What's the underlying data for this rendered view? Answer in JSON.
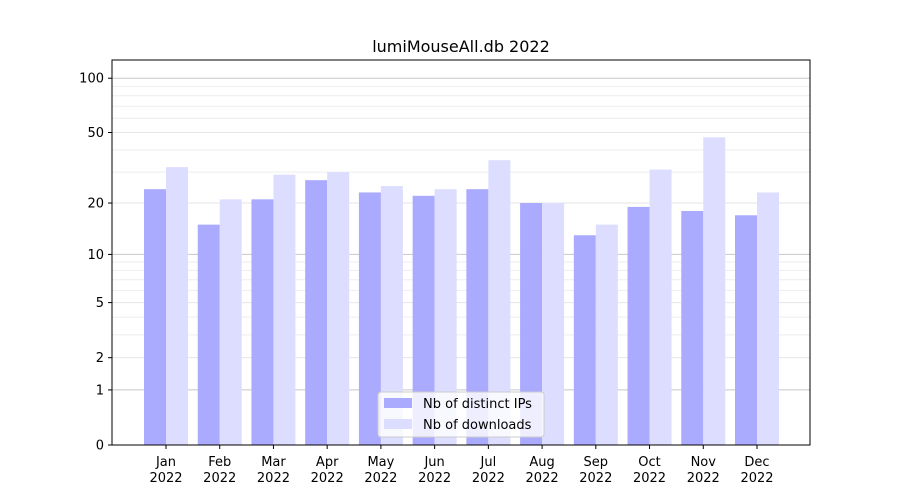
{
  "chart_data": {
    "type": "bar",
    "title": "lumiMouseAll.db 2022",
    "xlabel": "",
    "ylabel": "",
    "yscale": "log(1+y)",
    "ylim": [
      0,
      126
    ],
    "grid": true,
    "legend_position": "bottom-center",
    "yticks": [
      0,
      1,
      2,
      5,
      10,
      20,
      50,
      100
    ],
    "categories": [
      [
        "Jan",
        "2022"
      ],
      [
        "Feb",
        "2022"
      ],
      [
        "Mar",
        "2022"
      ],
      [
        "Apr",
        "2022"
      ],
      [
        "May",
        "2022"
      ],
      [
        "Jun",
        "2022"
      ],
      [
        "Jul",
        "2022"
      ],
      [
        "Aug",
        "2022"
      ],
      [
        "Sep",
        "2022"
      ],
      [
        "Oct",
        "2022"
      ],
      [
        "Nov",
        "2022"
      ],
      [
        "Dec",
        "2022"
      ]
    ],
    "series": [
      {
        "name": "Nb of distinct IPs",
        "color": "#aaaaff",
        "values": [
          24,
          15,
          21,
          27,
          23,
          22,
          24,
          20,
          13,
          19,
          18,
          17
        ]
      },
      {
        "name": "Nb of downloads",
        "color": "#ddddff",
        "values": [
          32,
          21,
          29,
          30,
          25,
          24,
          35,
          20,
          15,
          31,
          47,
          23
        ]
      }
    ]
  }
}
